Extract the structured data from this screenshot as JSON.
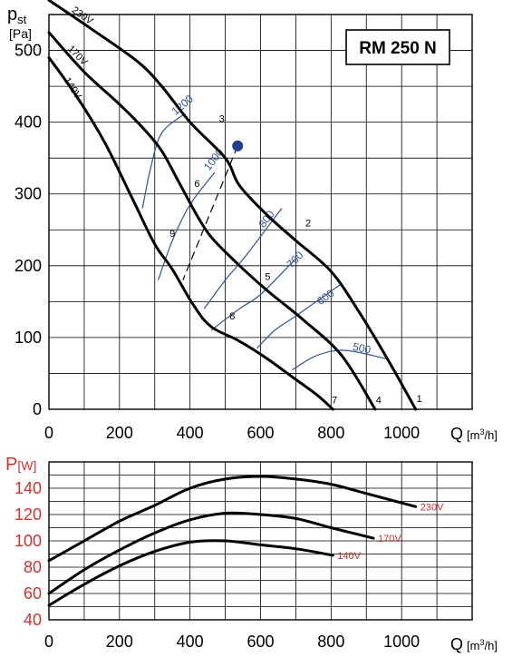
{
  "chart_data": [
    {
      "type": "line",
      "title": "RM 250 N",
      "ylabel_main": "p",
      "ylabel_sub": "st",
      "ylabel_unit": "[Pa]",
      "xlabel": "Q",
      "xlabel_unit_pre": "[m",
      "xlabel_unit_sup": "3",
      "xlabel_unit_post": "/h]",
      "xlim": [
        0,
        1200
      ],
      "ylim": [
        0,
        550
      ],
      "x_ticks": [
        0,
        200,
        400,
        600,
        800,
        1000
      ],
      "y_ticks": [
        0,
        100,
        200,
        300,
        400,
        500
      ],
      "grid": true,
      "series": [
        {
          "name": "230V",
          "label_x": 90,
          "label_y": 545,
          "x": [
            0,
            120,
            250,
            320,
            400,
            500,
            540,
            620,
            700,
            800,
            880,
            960,
            1040
          ],
          "y": [
            570,
            530,
            485,
            450,
            400,
            350,
            312,
            270,
            235,
            192,
            135,
            70,
            0
          ]
        },
        {
          "name": "170V",
          "label_x": 75,
          "label_y": 490,
          "x": [
            0,
            100,
            200,
            270,
            320,
            370,
            420,
            460,
            530,
            620,
            720,
            830,
            925
          ],
          "y": [
            525,
            470,
            425,
            390,
            360,
            315,
            270,
            240,
            205,
            165,
            125,
            75,
            0
          ]
        },
        {
          "name": "140V",
          "label_x": 60,
          "label_y": 445,
          "x": [
            0,
            80,
            160,
            240,
            300,
            350,
            410,
            460,
            540,
            620,
            690,
            760,
            805
          ],
          "y": [
            490,
            435,
            370,
            290,
            230,
            195,
            145,
            115,
            95,
            70,
            45,
            20,
            0
          ]
        }
      ],
      "rpm_lines": [
        {
          "label": "1200",
          "x": [
            265,
            290,
            320,
            380
          ],
          "y": [
            280,
            340,
            385,
            410
          ],
          "label_x": 385,
          "label_y": 420
        },
        {
          "label": "1000",
          "x": [
            310,
            350,
            400,
            470
          ],
          "y": [
            180,
            235,
            285,
            330
          ],
          "label_x": 475,
          "label_y": 345
        },
        {
          "label": "800",
          "x": [
            440,
            500,
            560,
            660
          ],
          "y": [
            140,
            180,
            215,
            280
          ],
          "label_x": 625,
          "label_y": 262
        },
        {
          "label": "700",
          "x": [
            460,
            540,
            600,
            700
          ],
          "y": [
            110,
            140,
            160,
            210
          ],
          "label_x": 705,
          "label_y": 205
        },
        {
          "label": "600",
          "x": [
            590,
            640,
            700,
            830
          ],
          "y": [
            85,
            110,
            130,
            175
          ],
          "label_x": 790,
          "label_y": 152
        },
        {
          "label": "500",
          "x": [
            690,
            760,
            840,
            960
          ],
          "y": [
            55,
            75,
            82,
            70
          ],
          "label_x": 885,
          "label_y": 80
        }
      ],
      "numbered_points": [
        {
          "label": "1",
          "x": 1050,
          "y": 10
        },
        {
          "label": "2",
          "x": 735,
          "y": 255
        },
        {
          "label": "3",
          "x": 490,
          "y": 400
        },
        {
          "label": "4",
          "x": 935,
          "y": 8
        },
        {
          "label": "5",
          "x": 620,
          "y": 180
        },
        {
          "label": "6",
          "x": 420,
          "y": 310
        },
        {
          "label": "7",
          "x": 810,
          "y": 8
        },
        {
          "label": "8",
          "x": 520,
          "y": 125
        },
        {
          "label": "9",
          "x": 350,
          "y": 240
        }
      ],
      "operating_point": {
        "x": 535,
        "y": 367
      },
      "dashed_line": {
        "x": [
          535,
          380
        ],
        "y": [
          367,
          180
        ]
      },
      "colors": {
        "curve": "#000000",
        "rpm": "#2f5597",
        "point": "#1f3f8f",
        "grid": "#000000"
      }
    },
    {
      "type": "line",
      "ylabel_main": "P",
      "ylabel_unit": "[W]",
      "xlabel": "Q",
      "xlabel_unit_pre": "[m",
      "xlabel_unit_sup": "3",
      "xlabel_unit_post": "/h]",
      "xlim": [
        0,
        1200
      ],
      "ylim": [
        40,
        160
      ],
      "x_ticks": [
        0,
        200,
        400,
        600,
        800,
        1000
      ],
      "y_ticks": [
        40,
        60,
        80,
        100,
        120,
        140
      ],
      "grid": true,
      "series": [
        {
          "name": "230V",
          "x": [
            0,
            100,
            200,
            300,
            400,
            500,
            600,
            700,
            800,
            900,
            1040
          ],
          "y": [
            85,
            100,
            115,
            127,
            140,
            147,
            149,
            147,
            143,
            136,
            126
          ]
        },
        {
          "name": "170V",
          "x": [
            0,
            100,
            200,
            300,
            400,
            500,
            600,
            700,
            800,
            920
          ],
          "y": [
            60,
            78,
            93,
            106,
            116,
            121,
            120,
            117,
            110,
            102
          ]
        },
        {
          "name": "140V",
          "x": [
            0,
            100,
            200,
            300,
            400,
            500,
            600,
            700,
            805
          ],
          "y": [
            51,
            67,
            81,
            92,
            99,
            100,
            97,
            94,
            89
          ]
        }
      ],
      "colors": {
        "curve": "#e0363a",
        "axis_text": "#d0312d",
        "grid": "#000000"
      }
    }
  ]
}
